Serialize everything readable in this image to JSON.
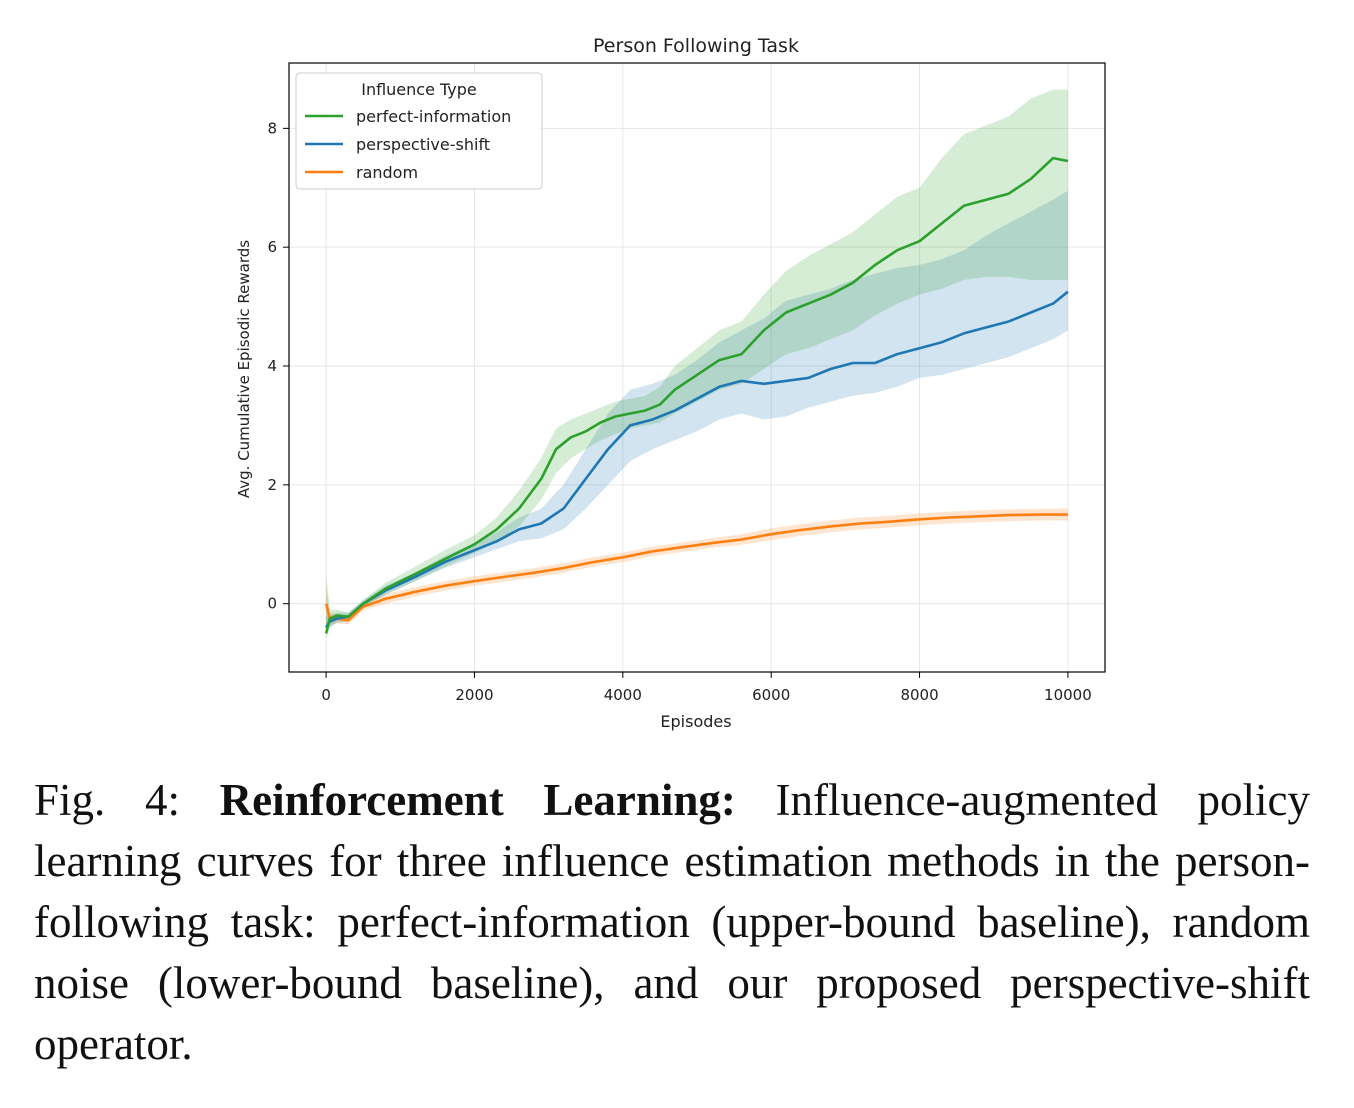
{
  "chart_data": {
    "type": "line",
    "title": "Person Following Task",
    "xlabel": "Episodes",
    "ylabel": "Avg. Cumulative Episodic Rewards",
    "xlim": [
      -500,
      10500
    ],
    "ylim": [
      -1.15,
      9.1
    ],
    "xticks": [
      0,
      2000,
      4000,
      6000,
      8000,
      10000
    ],
    "yticks": [
      0,
      2,
      4,
      6,
      8
    ],
    "grid": true,
    "legend": {
      "title": "Influence Type",
      "placement": "top-left"
    },
    "series": [
      {
        "name": "perfect-information",
        "color": "#2ca02c",
        "x": [
          0,
          50,
          150,
          300,
          500,
          800,
          1200,
          1600,
          2000,
          2300,
          2600,
          2900,
          3100,
          3300,
          3500,
          3700,
          3900,
          4100,
          4300,
          4500,
          4700,
          5000,
          5300,
          5600,
          5900,
          6200,
          6500,
          6800,
          7100,
          7400,
          7700,
          8000,
          8300,
          8600,
          8900,
          9200,
          9500,
          9800,
          10000
        ],
        "values": [
          -0.5,
          -0.25,
          -0.2,
          -0.22,
          0.0,
          0.25,
          0.5,
          0.75,
          1.0,
          1.25,
          1.6,
          2.1,
          2.6,
          2.8,
          2.9,
          3.05,
          3.15,
          3.2,
          3.25,
          3.35,
          3.6,
          3.85,
          4.1,
          4.2,
          4.6,
          4.9,
          5.05,
          5.2,
          5.4,
          5.7,
          5.95,
          6.1,
          6.4,
          6.7,
          6.8,
          6.9,
          7.15,
          7.5,
          7.45
        ],
        "lower": [
          -0.6,
          -0.4,
          -0.3,
          -0.3,
          -0.05,
          0.15,
          0.38,
          0.62,
          0.85,
          1.05,
          1.3,
          1.75,
          2.2,
          2.45,
          2.6,
          2.75,
          2.85,
          2.95,
          3.0,
          3.05,
          3.2,
          3.4,
          3.6,
          3.7,
          3.95,
          4.2,
          4.3,
          4.45,
          4.6,
          4.85,
          5.05,
          5.2,
          5.3,
          5.45,
          5.5,
          5.5,
          5.45,
          5.45,
          5.45
        ],
        "upper": [
          0.5,
          -0.1,
          -0.1,
          -0.15,
          0.06,
          0.35,
          0.62,
          0.9,
          1.15,
          1.45,
          1.9,
          2.45,
          2.95,
          3.1,
          3.2,
          3.3,
          3.4,
          3.45,
          3.5,
          3.65,
          4.0,
          4.3,
          4.6,
          4.75,
          5.2,
          5.6,
          5.85,
          6.05,
          6.25,
          6.55,
          6.85,
          7.0,
          7.5,
          7.9,
          8.05,
          8.2,
          8.5,
          8.65,
          8.65
        ]
      },
      {
        "name": "perspective-shift",
        "color": "#1f77b4",
        "x": [
          0,
          50,
          150,
          300,
          500,
          800,
          1200,
          1600,
          2000,
          2300,
          2600,
          2900,
          3200,
          3500,
          3800,
          4100,
          4400,
          4700,
          5000,
          5300,
          5600,
          5900,
          6200,
          6500,
          6800,
          7100,
          7400,
          7700,
          8000,
          8300,
          8600,
          8900,
          9200,
          9500,
          9800,
          10000
        ],
        "values": [
          -0.4,
          -0.3,
          -0.25,
          -0.22,
          0.0,
          0.22,
          0.45,
          0.7,
          0.9,
          1.05,
          1.25,
          1.35,
          1.6,
          2.1,
          2.6,
          3.0,
          3.1,
          3.25,
          3.45,
          3.65,
          3.75,
          3.7,
          3.75,
          3.8,
          3.95,
          4.05,
          4.05,
          4.2,
          4.3,
          4.4,
          4.55,
          4.65,
          4.75,
          4.9,
          5.05,
          5.25
        ],
        "lower": [
          -0.5,
          -0.4,
          -0.32,
          -0.3,
          -0.05,
          0.15,
          0.38,
          0.6,
          0.78,
          0.92,
          1.05,
          1.1,
          1.25,
          1.6,
          2.0,
          2.4,
          2.6,
          2.75,
          2.9,
          3.1,
          3.2,
          3.1,
          3.15,
          3.3,
          3.4,
          3.5,
          3.55,
          3.65,
          3.8,
          3.85,
          3.95,
          4.05,
          4.15,
          4.3,
          4.45,
          4.6
        ],
        "upper": [
          -0.2,
          -0.2,
          -0.15,
          -0.15,
          0.06,
          0.3,
          0.52,
          0.8,
          1.02,
          1.2,
          1.45,
          1.6,
          2.0,
          2.6,
          3.2,
          3.6,
          3.7,
          3.85,
          4.1,
          4.4,
          4.6,
          4.8,
          5.1,
          5.2,
          5.3,
          5.45,
          5.55,
          5.65,
          5.7,
          5.8,
          5.95,
          6.2,
          6.4,
          6.6,
          6.8,
          6.95
        ]
      },
      {
        "name": "random",
        "color": "#ff7f0e",
        "x": [
          0,
          50,
          150,
          300,
          500,
          800,
          1200,
          1600,
          2000,
          2400,
          2800,
          3200,
          3600,
          4000,
          4400,
          4800,
          5200,
          5600,
          6000,
          6400,
          6800,
          7200,
          7600,
          8000,
          8400,
          8800,
          9200,
          9600,
          10000
        ],
        "values": [
          0.0,
          -0.25,
          -0.25,
          -0.28,
          -0.05,
          0.08,
          0.2,
          0.3,
          0.38,
          0.45,
          0.52,
          0.6,
          0.7,
          0.78,
          0.88,
          0.95,
          1.02,
          1.08,
          1.17,
          1.24,
          1.3,
          1.35,
          1.38,
          1.42,
          1.45,
          1.47,
          1.49,
          1.5,
          1.5
        ],
        "lower": [
          -0.4,
          -0.35,
          -0.33,
          -0.35,
          -0.12,
          0.0,
          0.12,
          0.22,
          0.3,
          0.37,
          0.44,
          0.52,
          0.62,
          0.7,
          0.8,
          0.87,
          0.94,
          0.99,
          1.07,
          1.14,
          1.2,
          1.25,
          1.28,
          1.32,
          1.35,
          1.37,
          1.39,
          1.4,
          1.4
        ],
        "upper": [
          0.3,
          -0.15,
          -0.17,
          -0.2,
          0.02,
          0.16,
          0.28,
          0.38,
          0.46,
          0.53,
          0.6,
          0.68,
          0.78,
          0.86,
          0.96,
          1.03,
          1.1,
          1.17,
          1.27,
          1.34,
          1.4,
          1.45,
          1.48,
          1.52,
          1.55,
          1.57,
          1.59,
          1.6,
          1.6
        ]
      }
    ]
  },
  "caption": {
    "label": "Fig. 4:",
    "bold": "Reinforcement Learning:",
    "text": "Influence-augmented policy learning curves for three influence estimation methods in the person-following task: perfect-information (upper-bound baseline), random noise (lower-bound baseline), and our proposed perspective-shift operator."
  }
}
